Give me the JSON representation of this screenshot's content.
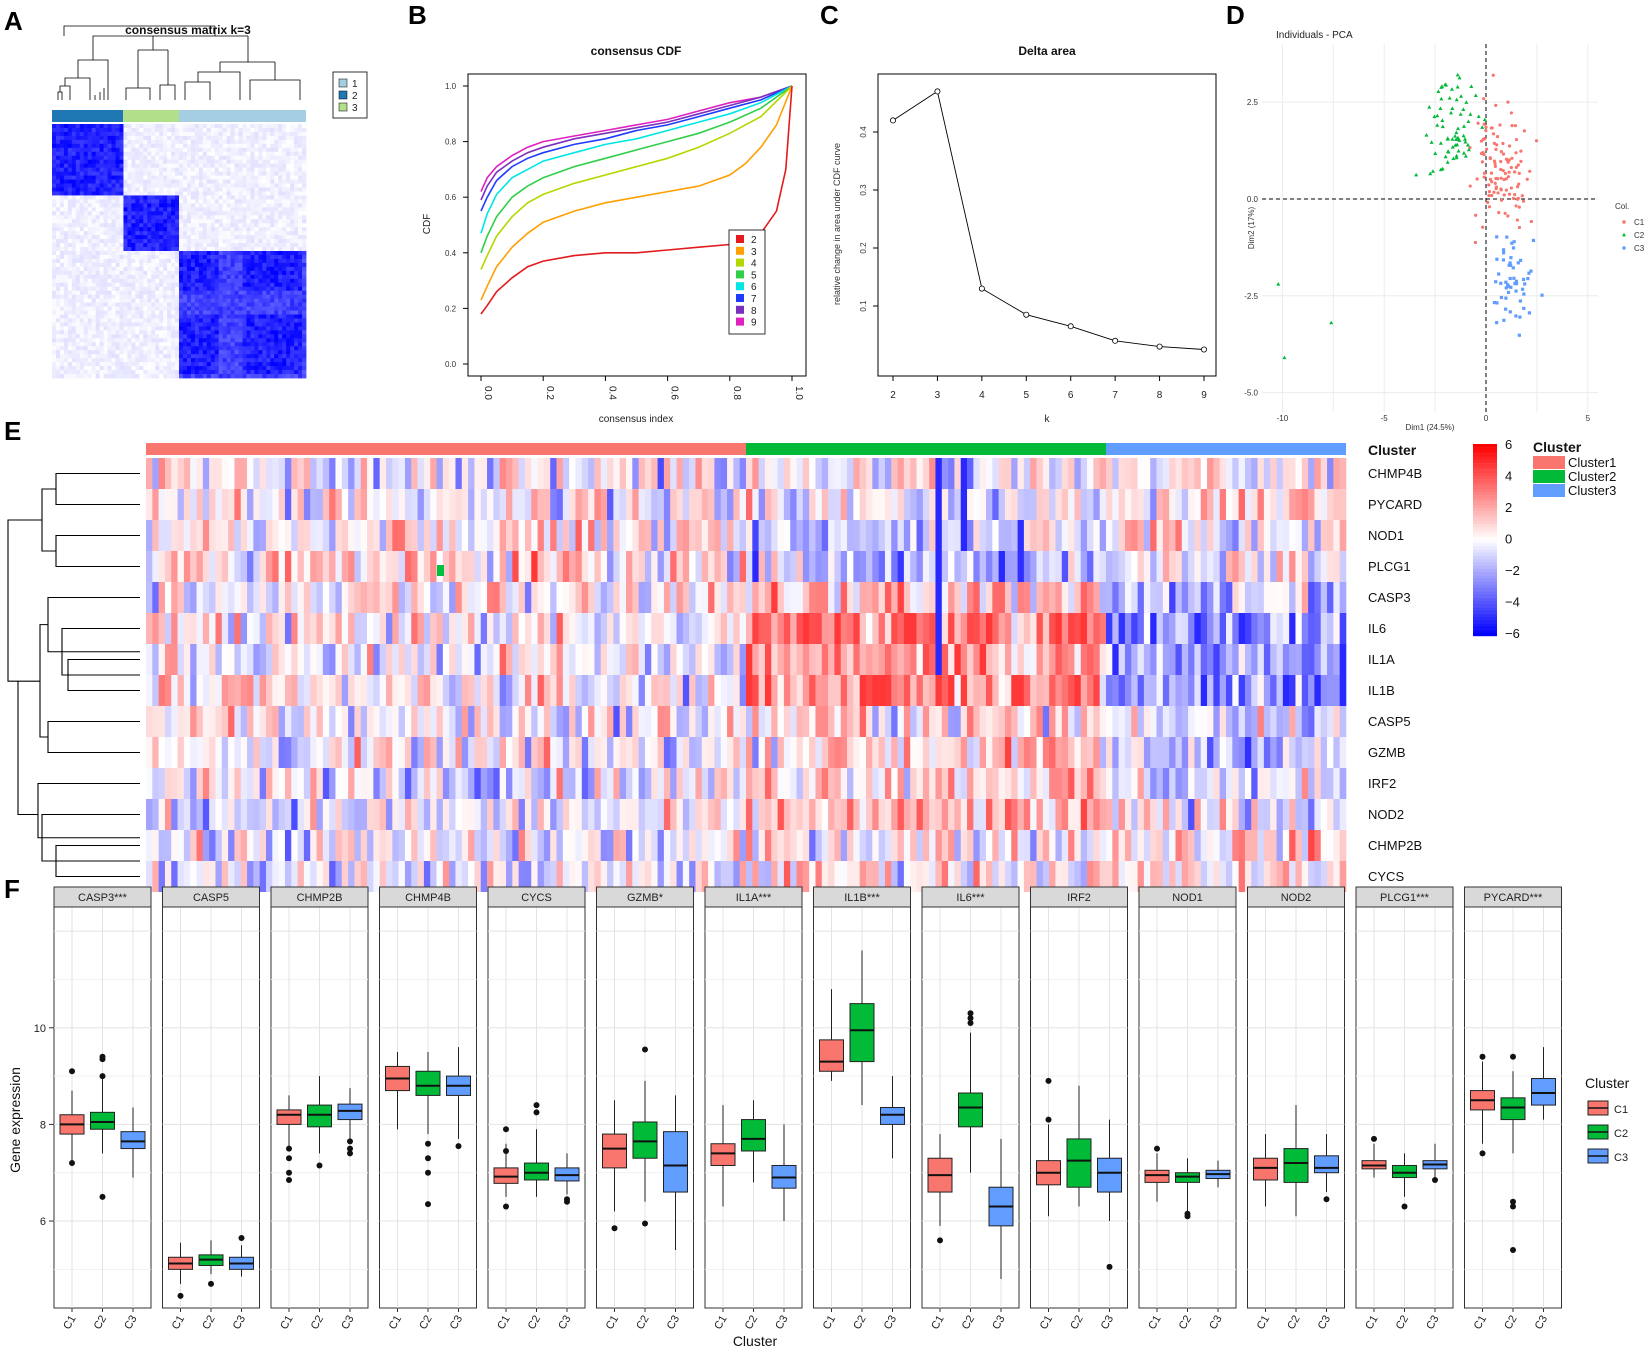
{
  "panels": {
    "A": "A",
    "B": "B",
    "C": "C",
    "D": "D",
    "E": "E",
    "F": "F"
  },
  "colors": {
    "cluster1": "#f8766d",
    "cluster2": "#00ba38",
    "cluster3": "#619cff",
    "heat_high": "#ff0000",
    "heat_low": "#0000ff"
  },
  "chart_data": [
    {
      "id": "A",
      "type": "heatmap",
      "title": "consensus matrix k=3",
      "legend": [
        "1",
        "2",
        "3"
      ],
      "legend_colors": [
        "#a6cee3",
        "#1f78b4",
        "#b2df8a"
      ],
      "groups": [
        {
          "label": "2",
          "size": 0.28
        },
        {
          "label": "3",
          "size": 0.22
        },
        {
          "label": "1",
          "size": 0.5
        }
      ]
    },
    {
      "id": "B",
      "type": "line",
      "title": "consensus CDF",
      "xlabel": "consensus index",
      "ylabel": "CDF",
      "xlim": [
        0,
        1
      ],
      "ylim": [
        0,
        1
      ],
      "xticks": [
        "0.0",
        "0.2",
        "0.4",
        "0.6",
        "0.8",
        "1.0"
      ],
      "yticks": [
        "0.0",
        "0.2",
        "0.4",
        "0.6",
        "0.8",
        "1.0"
      ],
      "series": [
        {
          "name": "2",
          "color": "#e41a1c",
          "x": [
            0,
            0.02,
            0.05,
            0.1,
            0.15,
            0.2,
            0.3,
            0.4,
            0.5,
            0.6,
            0.7,
            0.8,
            0.85,
            0.9,
            0.95,
            0.98,
            1
          ],
          "y": [
            0.18,
            0.21,
            0.26,
            0.31,
            0.35,
            0.37,
            0.39,
            0.4,
            0.4,
            0.41,
            0.42,
            0.43,
            0.45,
            0.47,
            0.55,
            0.7,
            1.0
          ]
        },
        {
          "name": "3",
          "color": "#ff9f00",
          "x": [
            0,
            0.02,
            0.05,
            0.1,
            0.15,
            0.2,
            0.3,
            0.4,
            0.5,
            0.6,
            0.7,
            0.8,
            0.85,
            0.9,
            0.95,
            1
          ],
          "y": [
            0.23,
            0.28,
            0.35,
            0.42,
            0.47,
            0.51,
            0.55,
            0.58,
            0.6,
            0.62,
            0.64,
            0.68,
            0.72,
            0.78,
            0.86,
            1.0
          ]
        },
        {
          "name": "4",
          "color": "#b5d700",
          "x": [
            0,
            0.02,
            0.05,
            0.1,
            0.15,
            0.2,
            0.3,
            0.4,
            0.5,
            0.6,
            0.7,
            0.8,
            0.9,
            1
          ],
          "y": [
            0.34,
            0.39,
            0.46,
            0.53,
            0.58,
            0.61,
            0.65,
            0.68,
            0.71,
            0.74,
            0.78,
            0.83,
            0.89,
            1.0
          ]
        },
        {
          "name": "5",
          "color": "#2fcf4a",
          "x": [
            0,
            0.02,
            0.05,
            0.1,
            0.15,
            0.2,
            0.3,
            0.4,
            0.5,
            0.6,
            0.7,
            0.8,
            0.9,
            1
          ],
          "y": [
            0.4,
            0.46,
            0.53,
            0.6,
            0.64,
            0.67,
            0.71,
            0.74,
            0.77,
            0.8,
            0.83,
            0.87,
            0.92,
            1.0
          ]
        },
        {
          "name": "6",
          "color": "#00e5e5",
          "x": [
            0,
            0.02,
            0.05,
            0.1,
            0.15,
            0.2,
            0.3,
            0.4,
            0.5,
            0.6,
            0.7,
            0.8,
            0.9,
            1
          ],
          "y": [
            0.47,
            0.54,
            0.61,
            0.67,
            0.7,
            0.73,
            0.76,
            0.79,
            0.81,
            0.84,
            0.87,
            0.9,
            0.94,
            1.0
          ]
        },
        {
          "name": "7",
          "color": "#1e3cff",
          "x": [
            0,
            0.02,
            0.05,
            0.1,
            0.15,
            0.2,
            0.3,
            0.4,
            0.5,
            0.6,
            0.7,
            0.8,
            0.9,
            1
          ],
          "y": [
            0.55,
            0.6,
            0.66,
            0.71,
            0.74,
            0.76,
            0.79,
            0.81,
            0.84,
            0.86,
            0.89,
            0.92,
            0.95,
            1.0
          ]
        },
        {
          "name": "8",
          "color": "#7b2fbf",
          "x": [
            0,
            0.02,
            0.05,
            0.1,
            0.15,
            0.2,
            0.3,
            0.4,
            0.5,
            0.6,
            0.7,
            0.8,
            0.9,
            1
          ],
          "y": [
            0.59,
            0.64,
            0.69,
            0.73,
            0.76,
            0.78,
            0.81,
            0.83,
            0.85,
            0.87,
            0.9,
            0.93,
            0.96,
            1.0
          ]
        },
        {
          "name": "9",
          "color": "#e020c0",
          "x": [
            0,
            0.02,
            0.05,
            0.1,
            0.15,
            0.2,
            0.3,
            0.4,
            0.5,
            0.6,
            0.7,
            0.8,
            0.9,
            1
          ],
          "y": [
            0.62,
            0.67,
            0.71,
            0.75,
            0.78,
            0.8,
            0.82,
            0.84,
            0.86,
            0.88,
            0.91,
            0.94,
            0.96,
            1.0
          ]
        }
      ]
    },
    {
      "id": "C",
      "type": "line",
      "title": "Delta area",
      "xlabel": "k",
      "ylabel": "relative change in area under CDF curve",
      "x": [
        2,
        3,
        4,
        5,
        6,
        7,
        8,
        9
      ],
      "y": [
        0.42,
        0.47,
        0.13,
        0.085,
        0.065,
        0.04,
        0.03,
        0.025
      ],
      "xlim": [
        2,
        9
      ],
      "ylim": [
        0,
        0.5
      ],
      "yticks": [
        "0.1",
        "0.2",
        "0.3",
        "0.4"
      ],
      "xticks": [
        "2",
        "3",
        "4",
        "5",
        "6",
        "7",
        "8",
        "9"
      ]
    },
    {
      "id": "D",
      "type": "scatter",
      "title": "Individuals - PCA",
      "xlabel": "Dim1 (24.5%)",
      "ylabel": "Dim2 (17%)",
      "xlim": [
        -11,
        5.5
      ],
      "ylim": [
        -5.5,
        4
      ],
      "xticks": [
        "-10",
        "-5",
        "0",
        "5"
      ],
      "yticks": [
        "-5.0",
        "-2.5",
        "0.0",
        "2.5"
      ],
      "legend_title": "Col.",
      "legend": [
        "C1",
        "C2",
        "C3"
      ]
    },
    {
      "id": "E",
      "type": "heatmap",
      "annotation_label": "Cluster",
      "legend_title": "Cluster",
      "legend": [
        "Cluster1",
        "Cluster2",
        "Cluster3"
      ],
      "colorbar_ticks": [
        "6",
        "4",
        "2",
        "0",
        "−2",
        "−4",
        "−6"
      ],
      "genes": [
        "CHMP4B",
        "PYCARD",
        "NOD1",
        "PLCG1",
        "CASP3",
        "IL6",
        "IL1A",
        "IL1B",
        "CASP5",
        "GZMB",
        "IRF2",
        "NOD2",
        "CHMP2B",
        "CYCS"
      ],
      "group_fractions": [
        0.5,
        0.3,
        0.2
      ]
    },
    {
      "id": "F",
      "type": "box",
      "xlabel": "Cluster",
      "ylabel": "Gene expression",
      "ylim": [
        4.2,
        12.5
      ],
      "yticks": [
        "6",
        "8",
        "10"
      ],
      "categories": [
        "C1",
        "C2",
        "C3"
      ],
      "legend_title": "Cluster",
      "legend": [
        "C1",
        "C2",
        "C3"
      ],
      "facets": [
        {
          "label": "CASP3***",
          "boxes": [
            [
              7.2,
              7.8,
              8.0,
              8.2,
              8.7
            ],
            [
              7.4,
              7.9,
              8.05,
              8.25,
              9.0
            ],
            [
              6.9,
              7.5,
              7.65,
              7.85,
              8.35
            ]
          ]
        },
        {
          "label": "CASP5",
          "boxes": [
            [
              4.7,
              5.0,
              5.12,
              5.25,
              5.55
            ],
            [
              4.9,
              5.08,
              5.2,
              5.3,
              5.6
            ],
            [
              4.85,
              5.0,
              5.12,
              5.25,
              5.5
            ]
          ]
        },
        {
          "label": "CHMP2B",
          "boxes": [
            [
              7.5,
              8.0,
              8.2,
              8.3,
              8.6
            ],
            [
              7.4,
              7.95,
              8.2,
              8.4,
              9.0
            ],
            [
              7.6,
              8.1,
              8.28,
              8.42,
              8.75
            ]
          ]
        },
        {
          "label": "CHMP4B",
          "boxes": [
            [
              7.9,
              8.7,
              8.95,
              9.2,
              9.5
            ],
            [
              7.8,
              8.6,
              8.8,
              9.1,
              9.5
            ],
            [
              7.7,
              8.6,
              8.8,
              9.0,
              9.6
            ]
          ]
        },
        {
          "label": "CYCS",
          "boxes": [
            [
              6.5,
              6.78,
              6.92,
              7.1,
              7.6
            ],
            [
              6.5,
              6.85,
              7.0,
              7.2,
              7.9
            ],
            [
              6.55,
              6.83,
              6.95,
              7.1,
              7.4
            ]
          ]
        },
        {
          "label": "GZMB*",
          "boxes": [
            [
              6.2,
              7.1,
              7.5,
              7.8,
              8.5
            ],
            [
              6.4,
              7.3,
              7.65,
              8.05,
              8.9
            ],
            [
              5.4,
              6.6,
              7.15,
              7.85,
              8.6
            ]
          ]
        },
        {
          "label": "IL1A***",
          "boxes": [
            [
              6.3,
              7.15,
              7.4,
              7.6,
              8.4
            ],
            [
              6.8,
              7.45,
              7.7,
              8.1,
              8.5
            ],
            [
              6.0,
              6.68,
              6.9,
              7.15,
              8.0
            ]
          ]
        },
        {
          "label": "IL1B***",
          "boxes": [
            [
              8.9,
              9.1,
              9.3,
              9.75,
              10.8
            ],
            [
              8.4,
              9.3,
              9.95,
              10.5,
              11.6
            ],
            [
              7.3,
              8.0,
              8.2,
              8.35,
              9.0
            ]
          ]
        },
        {
          "label": "IL6***",
          "boxes": [
            [
              5.9,
              6.6,
              6.95,
              7.3,
              7.8
            ],
            [
              7.0,
              7.95,
              8.35,
              8.65,
              9.9
            ],
            [
              4.8,
              5.9,
              6.3,
              6.7,
              7.7
            ]
          ]
        },
        {
          "label": "IRF2",
          "boxes": [
            [
              6.1,
              6.75,
              7.0,
              7.25,
              8.0
            ],
            [
              6.3,
              6.7,
              7.25,
              7.7,
              8.8
            ],
            [
              6.0,
              6.6,
              7.0,
              7.3,
              8.1
            ]
          ]
        },
        {
          "label": "NOD1",
          "boxes": [
            [
              6.4,
              6.8,
              6.95,
              7.05,
              7.4
            ],
            [
              6.2,
              6.8,
              6.92,
              7.0,
              7.3
            ],
            [
              6.7,
              6.88,
              6.97,
              7.05,
              7.25
            ]
          ]
        },
        {
          "label": "NOD2",
          "boxes": [
            [
              6.3,
              6.85,
              7.1,
              7.3,
              7.8
            ],
            [
              6.1,
              6.8,
              7.2,
              7.5,
              8.4
            ],
            [
              6.6,
              7.0,
              7.1,
              7.35,
              7.8
            ]
          ]
        },
        {
          "label": "PLCG1***",
          "boxes": [
            [
              6.9,
              7.08,
              7.15,
              7.25,
              7.6
            ],
            [
              6.5,
              6.9,
              7.0,
              7.15,
              7.4
            ],
            [
              6.9,
              7.08,
              7.17,
              7.25,
              7.6
            ]
          ]
        },
        {
          "label": "PYCARD***",
          "boxes": [
            [
              7.6,
              8.3,
              8.5,
              8.7,
              9.3
            ],
            [
              7.4,
              8.1,
              8.35,
              8.55,
              9.1
            ],
            [
              8.1,
              8.4,
              8.65,
              8.95,
              9.6
            ]
          ]
        }
      ]
    }
  ]
}
